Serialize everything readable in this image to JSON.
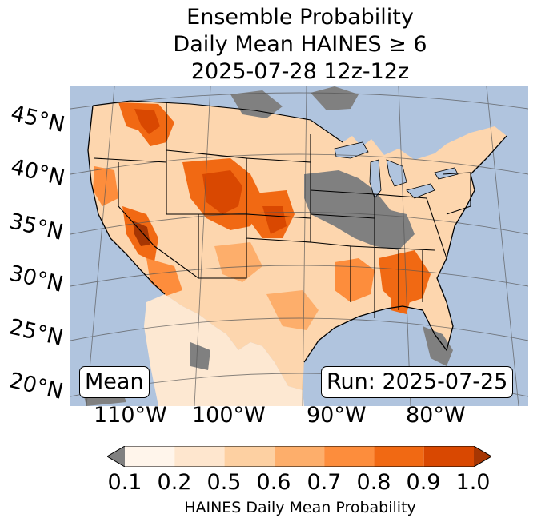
{
  "title": {
    "line1": "Ensemble Probability",
    "line2": "Daily Mean HAINES ≥ 6",
    "line3": "2025-07-28 12z-12z"
  },
  "map": {
    "region": "Contiguous United States",
    "ocean_color": "#b0c4de",
    "no_data_color": "#808080",
    "latitude_labels": [
      "45°N",
      "40°N",
      "35°N",
      "30°N",
      "25°N",
      "20°N"
    ],
    "longitude_labels": [
      "110°W",
      "100°W",
      "90°W",
      "80°W"
    ],
    "stat_label": "Mean",
    "run_label": "Run: 2025-07-25"
  },
  "colorbar": {
    "label": "HAINES Daily Mean Probability",
    "ticks": [
      "0.1",
      "0.2",
      "0.5",
      "0.6",
      "0.7",
      "0.8",
      "0.9",
      "1.0"
    ],
    "under_color": "#808080",
    "colors": [
      "#fff5eb",
      "#fee6ce",
      "#fdd0a2",
      "#fdae6b",
      "#fd8d3c",
      "#f16913",
      "#d94801"
    ],
    "over_color": "#a63603"
  }
}
